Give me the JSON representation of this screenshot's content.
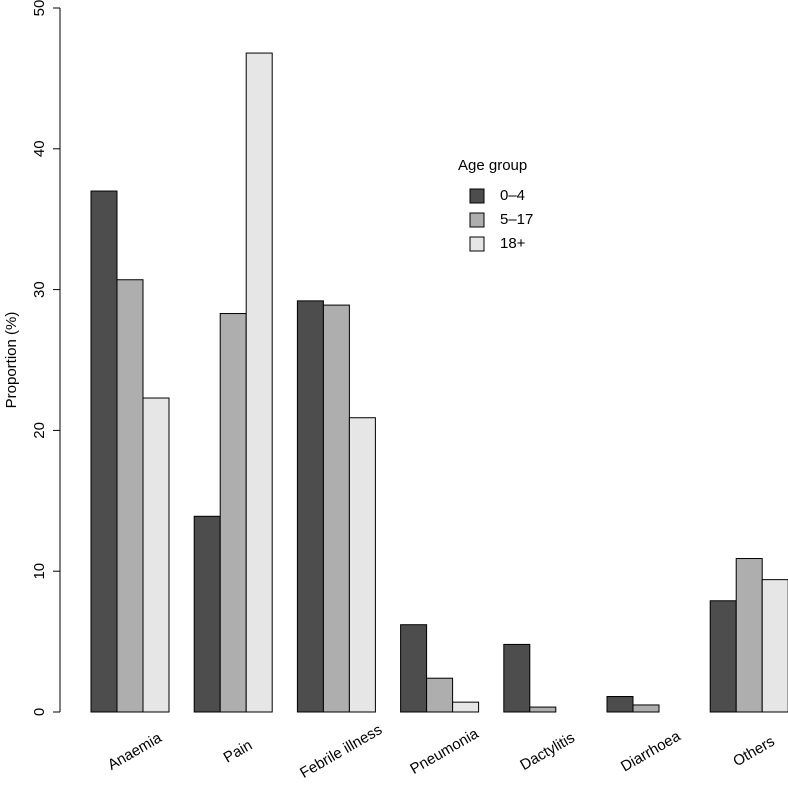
{
  "chart_data": {
    "type": "bar",
    "y_label": "Proportion (%)",
    "categories": [
      "Anaemia",
      "Pain",
      "Febrile illness",
      "Pneumonia",
      "Dactylitis",
      "Diarrhoea",
      "Others"
    ],
    "legend_title": "Age group",
    "series": [
      {
        "name": "0–4",
        "color": "#4d4d4d",
        "values": [
          37.0,
          13.9,
          29.2,
          6.2,
          4.8,
          1.1,
          7.9
        ]
      },
      {
        "name": "5–17",
        "color": "#aeaeae",
        "values": [
          30.7,
          28.3,
          28.9,
          2.4,
          0.35,
          0.5,
          10.9
        ]
      },
      {
        "name": "18+",
        "color": "#e6e6e6",
        "values": [
          22.3,
          46.8,
          20.9,
          0.7,
          0,
          0,
          9.4
        ]
      }
    ],
    "ylim": [
      0,
      50
    ],
    "yticks": [
      0,
      10,
      20,
      30,
      40,
      50
    ]
  }
}
